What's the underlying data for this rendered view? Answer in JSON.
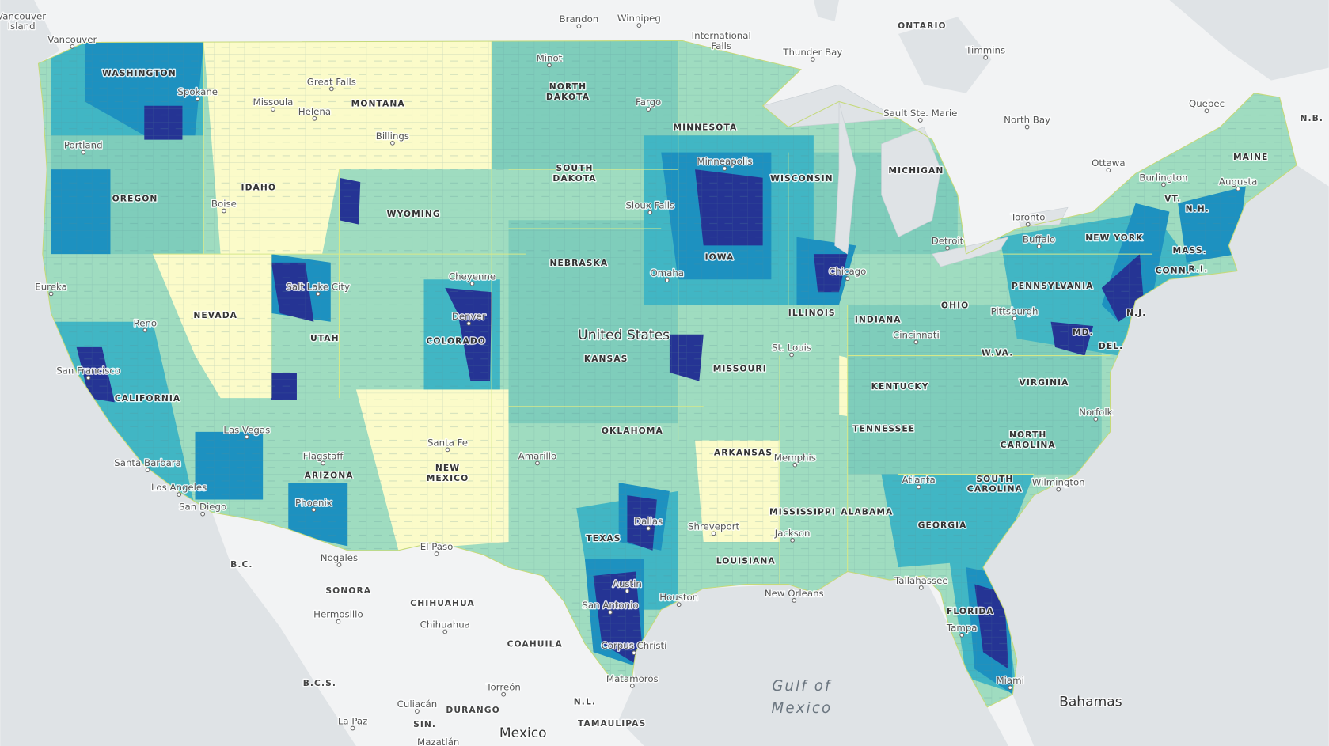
{
  "map": {
    "countries": [
      "United States",
      "Mexico",
      "Bahamas"
    ],
    "water": [
      [
        "Gulf of",
        "Mexico"
      ]
    ],
    "regions": [
      "ONTARIO",
      "B.C.",
      "SONORA",
      "CHIHUAHUA",
      "COAHUILA",
      "B.C.S.",
      "DURANGO",
      "N.L.",
      "SIN.",
      "TAMAULIPAS",
      "N.B."
    ],
    "states": [
      "WASHINGTON",
      "OREGON",
      "CALIFORNIA",
      "NEVADA",
      "IDAHO",
      "MONTANA",
      "WYOMING",
      "UTAH",
      "ARIZONA",
      "COLORADO",
      [
        "NEW",
        "MEXICO"
      ],
      [
        "NORTH",
        "DAKOTA"
      ],
      [
        "SOUTH",
        "DAKOTA"
      ],
      "NEBRASKA",
      "KANSAS",
      "OKLAHOMA",
      "TEXAS",
      "MINNESOTA",
      "IOWA",
      "MISSOURI",
      "ARKANSAS",
      "LOUISIANA",
      "WISCONSIN",
      "ILLINOIS",
      "MICHIGAN",
      "INDIANA",
      "OHIO",
      "KENTUCKY",
      "TENNESSEE",
      "MISSISSIPPI",
      "ALABAMA",
      "GEORGIA",
      "FLORIDA",
      [
        "SOUTH",
        "CAROLINA"
      ],
      [
        "NORTH",
        "CAROLINA"
      ],
      "VIRGINIA",
      "W.VA.",
      "MD.",
      "DEL.",
      "N.J.",
      "PENNSYLVANIA",
      "NEW YORK",
      "CONN.",
      "R.I.",
      "MASS.",
      "VT.",
      "N.H.",
      "MAINE"
    ],
    "cities": [
      [
        "Vancouver",
        "Island"
      ],
      "Vancouver",
      "Brandon",
      "Winnipeg",
      [
        "International",
        "Falls"
      ],
      "Thunder Bay",
      "Timmins",
      "Sault Ste. Marie",
      "North Bay",
      "Quebec",
      "Ottawa",
      "Toronto",
      "Spokane",
      "Great Falls",
      "Missoula",
      "Helena",
      "Billings",
      "Minot",
      "Fargo",
      "Portland",
      "Boise",
      "Minneapolis",
      "Sioux Falls",
      "Eureka",
      "Salt Lake City",
      "Cheyenne",
      "Omaha",
      "Reno",
      "Denver",
      "Chicago",
      "Detroit",
      "Burlington",
      "Augusta",
      "Buffalo",
      "Pittsburgh",
      "Cincinnati",
      "St. Louis",
      "San Francisco",
      "Las Vegas",
      "Santa Fe",
      "Amarillo",
      "Memphis",
      "Norfolk",
      "Flagstaff",
      "Santa Barbara",
      "Los Angeles",
      "Atlanta",
      "Wilmington",
      "Phoenix",
      "Dallas",
      "Shreveport",
      "Jackson",
      "San Diego",
      "El Paso",
      "Nogales",
      "Austin",
      "New Orleans",
      "Houston",
      "Tallahassee",
      "San Antonio",
      "Hermosillo",
      "Chihuahua",
      "Tampa",
      "Corpus Christi",
      "Miami",
      "Matamoros",
      "Torreón",
      "Culiacán",
      "La Paz",
      "Mazatlán"
    ]
  }
}
